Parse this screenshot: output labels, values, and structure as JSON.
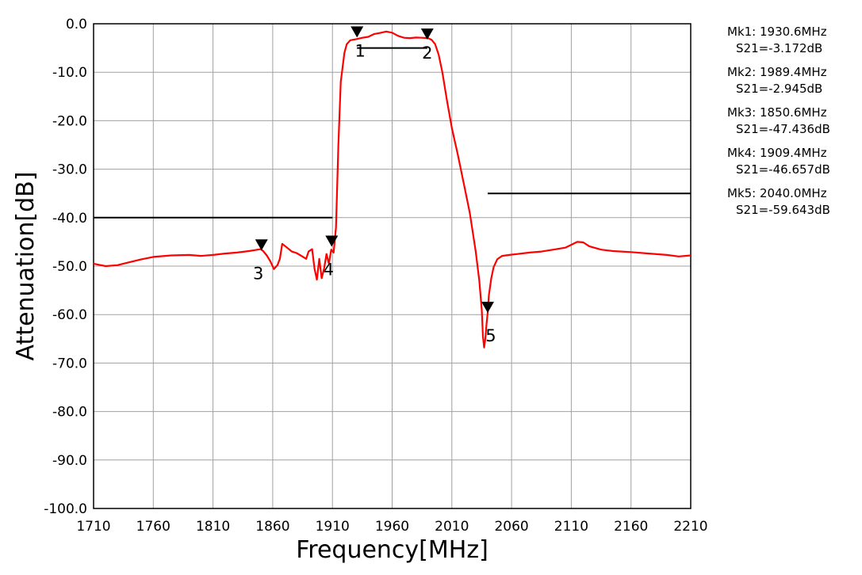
{
  "chart_data": {
    "type": "line",
    "xlabel": "Frequency[MHz]",
    "ylabel": "Attenuation[dB]",
    "xlim": [
      1710,
      2210
    ],
    "ylim": [
      -100,
      0
    ],
    "x_ticks": [
      1710,
      1760,
      1810,
      1860,
      1910,
      1960,
      2010,
      2060,
      2110,
      2160,
      2210
    ],
    "x_tick_labels": [
      "1710",
      "1760",
      "1810",
      "1860",
      "1910",
      "1960",
      "2010",
      "2060",
      "2110",
      "2160",
      "2210"
    ],
    "y_ticks": [
      0,
      -10,
      -20,
      -30,
      -40,
      -50,
      -60,
      -70,
      -80,
      -90,
      -100
    ],
    "y_tick_labels": [
      "0.0",
      "-10.0",
      "-20.0",
      "-30.0",
      "-40.0",
      "-50.0",
      "-60.0",
      "-70.0",
      "-80.0",
      "-90.0",
      "-100.0"
    ],
    "grid": true,
    "series": [
      {
        "color": "#ff0000",
        "x": [
          1710,
          1720,
          1730,
          1740,
          1750,
          1760,
          1775,
          1790,
          1800,
          1810,
          1820,
          1830,
          1840,
          1845,
          1850,
          1852,
          1855,
          1858,
          1861,
          1864,
          1866,
          1868,
          1872,
          1876,
          1880,
          1884,
          1888,
          1890,
          1893,
          1895,
          1897,
          1899,
          1901,
          1903,
          1905,
          1907,
          1909,
          1911,
          1913,
          1915,
          1917,
          1920,
          1922,
          1925,
          1930,
          1935,
          1940,
          1945,
          1950,
          1955,
          1960,
          1965,
          1970,
          1975,
          1980,
          1985,
          1990,
          1993,
          1996,
          1999,
          2002,
          2006,
          2010,
          2015,
          2020,
          2025,
          2030,
          2033,
          2035,
          2036,
          2037,
          2038,
          2039,
          2040,
          2041,
          2043,
          2045,
          2048,
          2052,
          2058,
          2065,
          2075,
          2085,
          2095,
          2105,
          2115,
          2120,
          2125,
          2135,
          2145,
          2160,
          2175,
          2190,
          2200,
          2210
        ],
        "y": [
          -49.5,
          -50.0,
          -49.8,
          -49.2,
          -48.6,
          -48.1,
          -47.8,
          -47.7,
          -47.9,
          -47.7,
          -47.4,
          -47.2,
          -46.9,
          -46.7,
          -46.5,
          -46.9,
          -47.8,
          -49.0,
          -50.6,
          -49.8,
          -48.5,
          -45.4,
          -46.2,
          -47.0,
          -47.3,
          -47.9,
          -48.5,
          -47.0,
          -46.5,
          -50.5,
          -52.8,
          -48.5,
          -52.5,
          -50.5,
          -47.5,
          -49.5,
          -46.6,
          -47.2,
          -42.0,
          -25.0,
          -12.0,
          -6.0,
          -4.2,
          -3.4,
          -3.17,
          -2.9,
          -2.7,
          -2.1,
          -1.9,
          -1.6,
          -1.85,
          -2.5,
          -2.9,
          -2.95,
          -2.85,
          -2.9,
          -2.95,
          -3.3,
          -4.2,
          -6.4,
          -10.0,
          -16.0,
          -21.5,
          -27.0,
          -33.0,
          -39.0,
          -47.0,
          -53.0,
          -59.0,
          -64.5,
          -66.8,
          -65.0,
          -62.0,
          -59.6,
          -56.0,
          -52.5,
          -50.2,
          -48.6,
          -47.9,
          -47.7,
          -47.5,
          -47.2,
          -47.0,
          -46.6,
          -46.2,
          -45.0,
          -45.1,
          -45.9,
          -46.6,
          -46.9,
          -47.1,
          -47.4,
          -47.7,
          -48.0,
          -47.8
        ]
      }
    ],
    "spec_lines": [
      {
        "x": [
          1710,
          1910
        ],
        "y": -40
      },
      {
        "x": [
          1930.6,
          1989.4
        ],
        "y": -5
      },
      {
        "x": [
          2040,
          2210
        ],
        "y": -35
      }
    ],
    "markers": [
      {
        "label": "1",
        "x": 1930.6,
        "y": -3.172
      },
      {
        "label": "2",
        "x": 1989.4,
        "y": -2.945
      },
      {
        "label": "3",
        "x": 1850.6,
        "y": -47.436
      },
      {
        "label": "4",
        "x": 1909.4,
        "y": -46.657
      },
      {
        "label": "5",
        "x": 2040.0,
        "y": -59.643
      }
    ]
  },
  "readouts": [
    {
      "freq": "Mk1: 1930.6MHz",
      "value": "S21=-3.172dB"
    },
    {
      "freq": "Mk2: 1989.4MHz",
      "value": "S21=-2.945dB"
    },
    {
      "freq": "Mk3: 1850.6MHz",
      "value": "S21=-47.436dB"
    },
    {
      "freq": "Mk4: 1909.4MHz",
      "value": "S21=-46.657dB"
    },
    {
      "freq": "Mk5: 2040.0MHz",
      "value": "S21=-59.643dB"
    }
  ]
}
